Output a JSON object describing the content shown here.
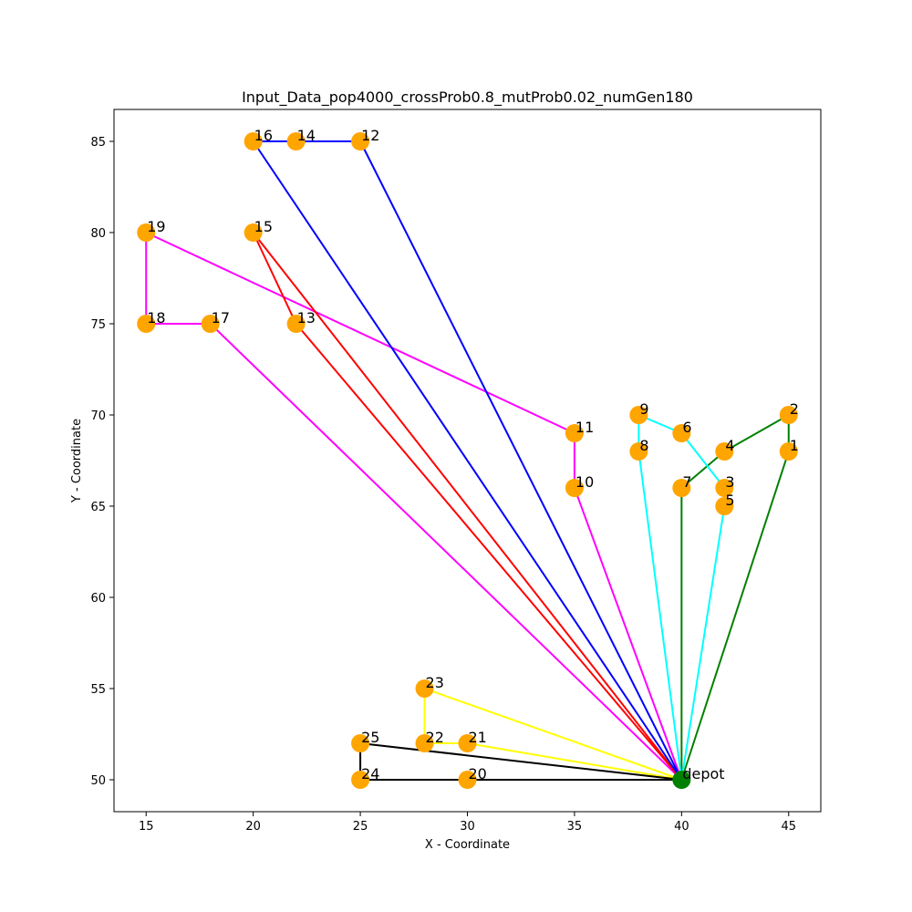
{
  "chart_data": {
    "type": "scatter",
    "title": "Input_Data_pop4000_crossProb0.8_mutProb0.02_numGen180",
    "xlabel": "X - Coordinate",
    "ylabel": "Y - Coordinate",
    "xlim": [
      13.5,
      46.5
    ],
    "ylim": [
      48.25,
      86.75
    ],
    "xticks": [
      15,
      20,
      25,
      30,
      35,
      40,
      45
    ],
    "yticks": [
      50,
      55,
      60,
      65,
      70,
      75,
      80,
      85
    ],
    "grid": false,
    "node_color": "#ffa500",
    "depot_color": "#008000",
    "depot": {
      "label": "depot",
      "x": 40,
      "y": 50
    },
    "nodes": [
      {
        "label": "1",
        "x": 45,
        "y": 68
      },
      {
        "label": "2",
        "x": 45,
        "y": 70
      },
      {
        "label": "3",
        "x": 42,
        "y": 66
      },
      {
        "label": "4",
        "x": 42,
        "y": 68
      },
      {
        "label": "5",
        "x": 42,
        "y": 65
      },
      {
        "label": "6",
        "x": 40,
        "y": 69
      },
      {
        "label": "7",
        "x": 40,
        "y": 66
      },
      {
        "label": "8",
        "x": 38,
        "y": 68
      },
      {
        "label": "9",
        "x": 38,
        "y": 70
      },
      {
        "label": "10",
        "x": 35,
        "y": 66
      },
      {
        "label": "11",
        "x": 35,
        "y": 69
      },
      {
        "label": "12",
        "x": 25,
        "y": 85
      },
      {
        "label": "13",
        "x": 22,
        "y": 75
      },
      {
        "label": "14",
        "x": 22,
        "y": 85
      },
      {
        "label": "15",
        "x": 20,
        "y": 80
      },
      {
        "label": "16",
        "x": 20,
        "y": 85
      },
      {
        "label": "17",
        "x": 18,
        "y": 75
      },
      {
        "label": "18",
        "x": 15,
        "y": 75
      },
      {
        "label": "19",
        "x": 15,
        "y": 80
      },
      {
        "label": "20",
        "x": 30,
        "y": 50
      },
      {
        "label": "21",
        "x": 30,
        "y": 52
      },
      {
        "label": "22",
        "x": 28,
        "y": 52
      },
      {
        "label": "23",
        "x": 28,
        "y": 55
      },
      {
        "label": "24",
        "x": 25,
        "y": 50
      },
      {
        "label": "25",
        "x": 25,
        "y": 52
      }
    ],
    "routes": [
      {
        "color": "#008000",
        "path": [
          [
            40,
            50
          ],
          [
            40,
            66
          ],
          [
            42,
            68
          ],
          [
            45,
            70
          ],
          [
            45,
            68
          ],
          [
            40,
            50
          ]
        ]
      },
      {
        "color": "#00ffff",
        "path": [
          [
            40,
            50
          ],
          [
            38,
            68
          ],
          [
            38,
            70
          ],
          [
            40,
            69
          ],
          [
            42,
            66
          ],
          [
            42,
            65
          ],
          [
            40,
            50
          ]
        ]
      },
      {
        "color": "#ff00ff",
        "path": [
          [
            40,
            50
          ],
          [
            35,
            66
          ],
          [
            35,
            69
          ],
          [
            15,
            80
          ],
          [
            15,
            75
          ],
          [
            18,
            75
          ],
          [
            40,
            50
          ]
        ]
      },
      {
        "color": "#ff0000",
        "path": [
          [
            40,
            50
          ],
          [
            22,
            75
          ],
          [
            20,
            80
          ],
          [
            40,
            50
          ]
        ]
      },
      {
        "color": "#0000ff",
        "path": [
          [
            40,
            50
          ],
          [
            25,
            85
          ],
          [
            22,
            85
          ],
          [
            20,
            85
          ],
          [
            40,
            50
          ]
        ]
      },
      {
        "color": "#ffff00",
        "path": [
          [
            40,
            50
          ],
          [
            28,
            55
          ],
          [
            28,
            52
          ],
          [
            30,
            52
          ],
          [
            40,
            50
          ]
        ]
      },
      {
        "color": "#000000",
        "path": [
          [
            40,
            50
          ],
          [
            25,
            52
          ],
          [
            25,
            50
          ],
          [
            30,
            50
          ],
          [
            40,
            50
          ]
        ]
      }
    ]
  }
}
